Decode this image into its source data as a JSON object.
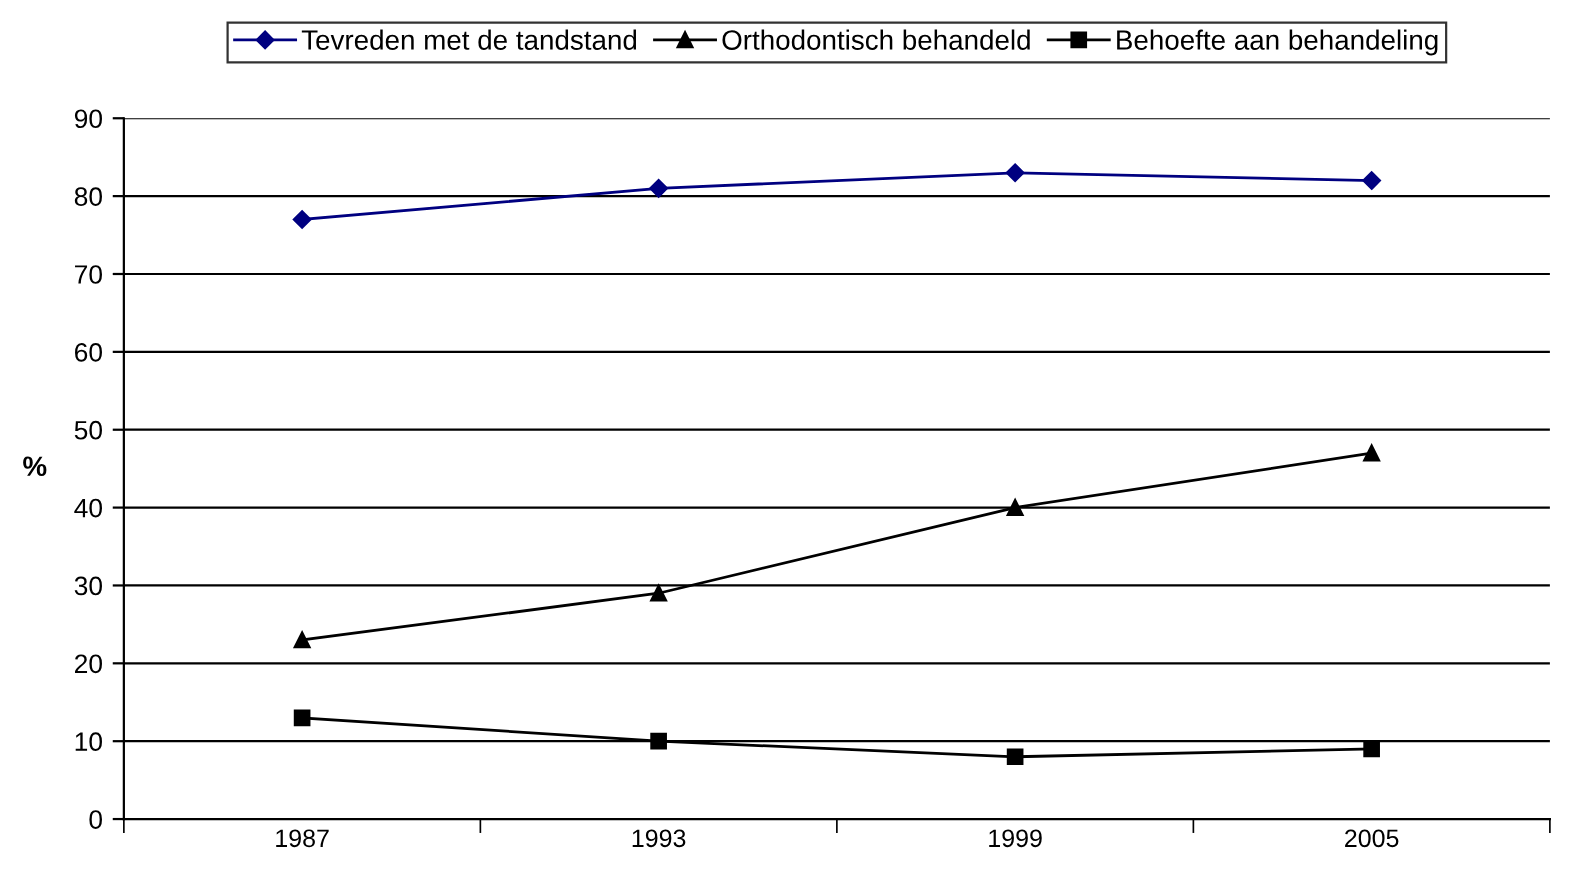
{
  "chart_data": {
    "type": "line",
    "ylabel": "%",
    "categories": [
      "1987",
      "1993",
      "1999",
      "2005"
    ],
    "series": [
      {
        "name": "Tevreden met de tandstand",
        "color": "#000080",
        "marker": "diamond",
        "values": [
          77,
          81,
          83,
          82
        ]
      },
      {
        "name": "Orthodontisch behandeld",
        "color": "#000000",
        "marker": "triangle",
        "values": [
          23,
          29,
          40,
          47
        ]
      },
      {
        "name": "Behoefte aan behandeling",
        "color": "#000000",
        "marker": "square",
        "values": [
          13,
          10,
          8,
          9
        ]
      }
    ],
    "ylim": [
      0,
      90
    ],
    "yticks": [
      0,
      10,
      20,
      30,
      40,
      50,
      60,
      70,
      80,
      90
    ],
    "grid": "y",
    "legend": "top",
    "line_style": "solid"
  }
}
